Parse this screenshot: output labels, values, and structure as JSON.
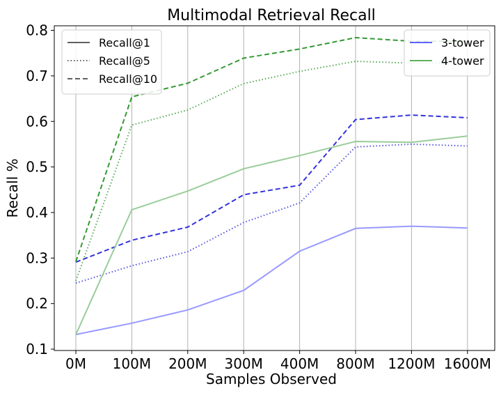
{
  "chart_data": {
    "type": "line",
    "title": "Multimodal Retrieval Recall",
    "xlabel": "Samples Observed",
    "ylabel": "Recall %",
    "categories": [
      "0M",
      "100M",
      "200M",
      "300M",
      "400M",
      "800M",
      "1200M",
      "1600M"
    ],
    "ylim": [
      0.097,
      0.81
    ],
    "yticks": [
      0.1,
      0.2,
      0.3,
      0.4,
      0.5,
      0.6,
      0.7,
      0.8
    ],
    "ytick_labels": [
      "0.1",
      "0.2",
      "0.3",
      "0.4",
      "0.5",
      "0.6",
      "0.7",
      "0.8"
    ],
    "grid": "vertical",
    "legend_metric": {
      "placement": "top-left",
      "entries": [
        {
          "label": "Recall@1",
          "style": "solid"
        },
        {
          "label": "Recall@5",
          "style": "dotted"
        },
        {
          "label": "Recall@10",
          "style": "dashed"
        }
      ]
    },
    "legend_model": {
      "placement": "top-right",
      "entries": [
        {
          "label": "3-tower",
          "color": "#0000ff"
        },
        {
          "label": "4-tower",
          "color": "#008000"
        }
      ]
    },
    "series": [
      {
        "model": "3-tower",
        "metric": "Recall@1",
        "color": "#9999ff",
        "style": "solid",
        "values": [
          0.132,
          0.157,
          0.186,
          0.229,
          0.315,
          0.365,
          0.37,
          0.366
        ]
      },
      {
        "model": "3-tower",
        "metric": "Recall@5",
        "color": "#5555dd",
        "style": "dotted",
        "values": [
          0.245,
          0.283,
          0.314,
          0.378,
          0.421,
          0.544,
          0.55,
          0.546
        ]
      },
      {
        "model": "3-tower",
        "metric": "Recall@10",
        "color": "#3333dd",
        "style": "dashed",
        "values": [
          0.291,
          0.339,
          0.368,
          0.439,
          0.46,
          0.604,
          0.614,
          0.608
        ]
      },
      {
        "model": "4-tower",
        "metric": "Recall@1",
        "color": "#99cc99",
        "style": "solid",
        "values": [
          0.132,
          0.406,
          0.447,
          0.496,
          0.525,
          0.556,
          0.554,
          0.568
        ]
      },
      {
        "model": "4-tower",
        "metric": "Recall@5",
        "color": "#55aa55",
        "style": "dotted",
        "values": [
          0.25,
          0.592,
          0.625,
          0.683,
          0.71,
          0.732,
          0.728,
          0.729
        ]
      },
      {
        "model": "4-tower",
        "metric": "Recall@10",
        "color": "#339933",
        "style": "dashed",
        "values": [
          0.292,
          0.654,
          0.684,
          0.739,
          0.759,
          0.784,
          0.776,
          0.776
        ]
      }
    ]
  }
}
